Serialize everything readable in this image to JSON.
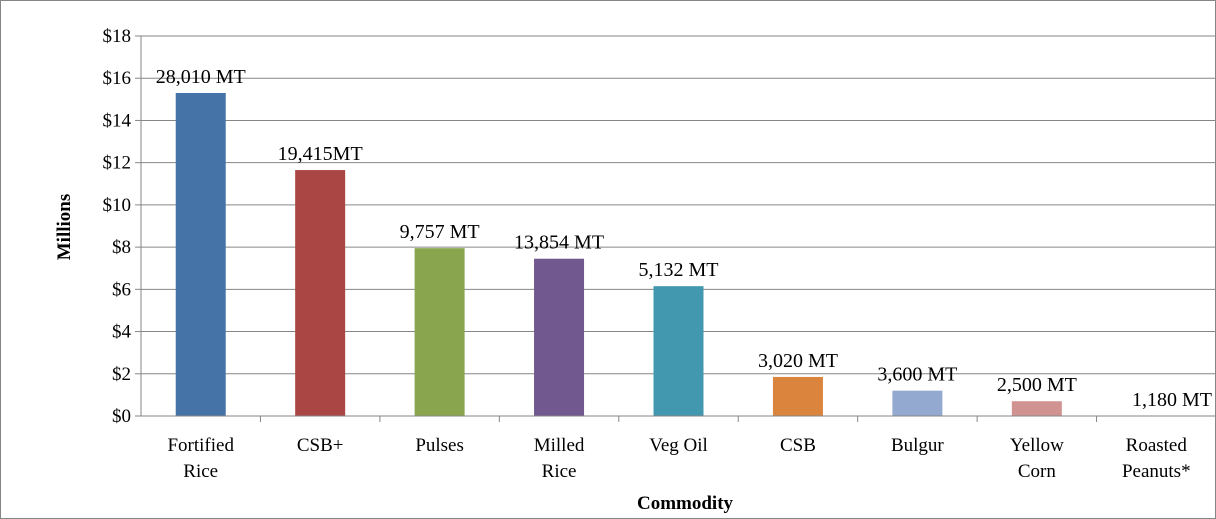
{
  "chart_data": {
    "type": "bar",
    "title": "",
    "xlabel": "Commodity",
    "ylabel": "Millions",
    "ylim": [
      0,
      18
    ],
    "yticks": [
      0,
      2,
      4,
      6,
      8,
      10,
      12,
      14,
      16,
      18
    ],
    "ytick_labels": [
      "$0",
      "$2",
      "$4",
      "$6",
      "$8",
      "$10",
      "$12",
      "$14",
      "$16",
      "$18"
    ],
    "grid": true,
    "legend": "none",
    "categories": [
      [
        "Fortified",
        "Rice"
      ],
      [
        "CSB+"
      ],
      [
        "Pulses"
      ],
      [
        "Milled",
        "Rice"
      ],
      [
        "Veg Oil"
      ],
      [
        "CSB"
      ],
      [
        "Bulgur"
      ],
      [
        "Yellow",
        "Corn"
      ],
      [
        "Roasted",
        "Peanuts*"
      ]
    ],
    "values": [
      15.3,
      11.65,
      7.95,
      7.45,
      6.15,
      1.85,
      1.2,
      0.7,
      0
    ],
    "data_labels": [
      "28,010 MT",
      "19,415MT",
      "9,757 MT",
      "13,854 MT",
      "5,132 MT",
      "3,020 MT",
      "3,600 MT",
      "2,500 MT",
      "1,180 MT"
    ],
    "colors": [
      "#4572a7",
      "#aa4643",
      "#89a54e",
      "#71588f",
      "#4198af",
      "#db843d",
      "#93a9cf",
      "#d19392",
      "#b9cd96"
    ],
    "grid_color": "#868686",
    "axis_color": "#868686"
  }
}
